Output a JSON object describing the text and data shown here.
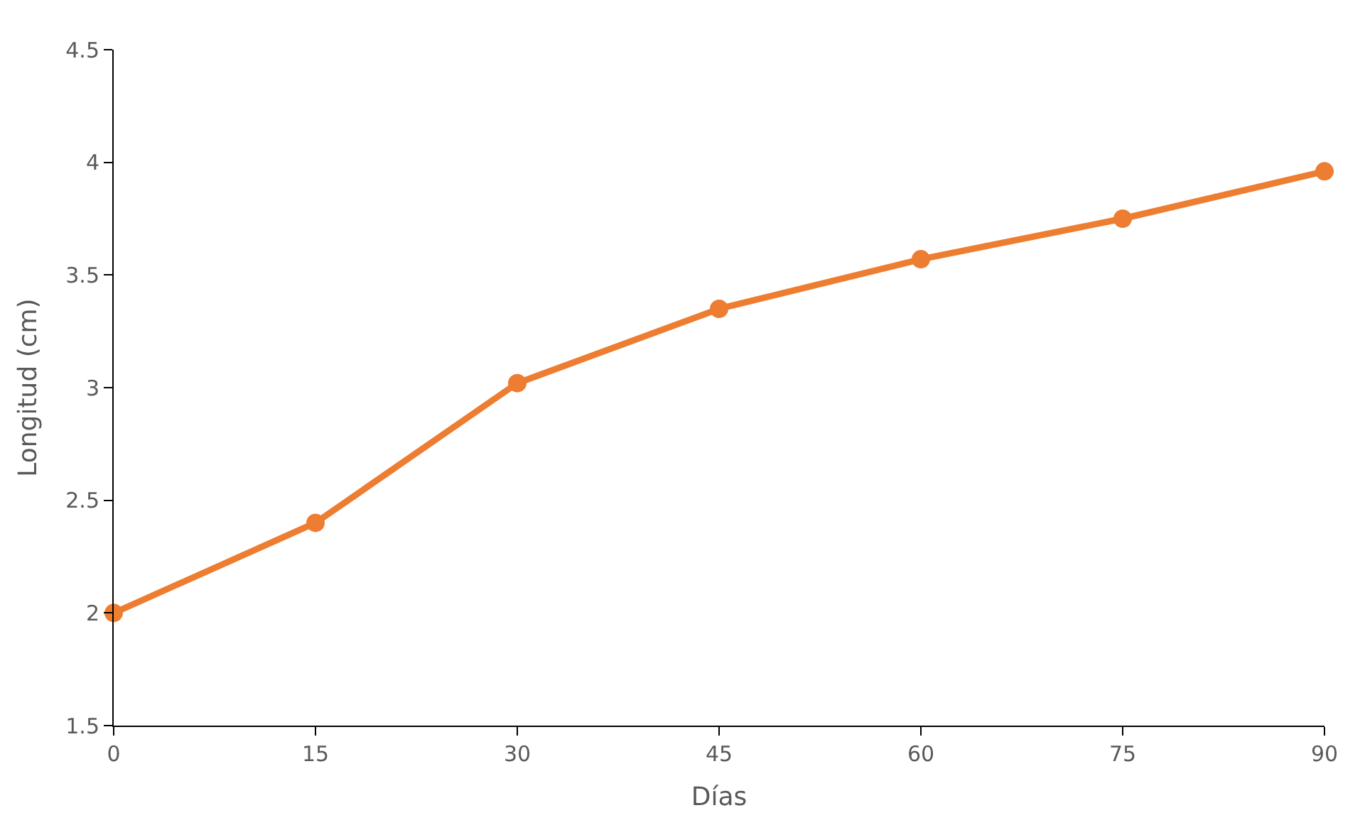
{
  "chart_data": {
    "type": "line",
    "xlabel": "Días",
    "ylabel": "Longitud (cm)",
    "x": [
      0,
      15,
      30,
      45,
      60,
      75,
      90
    ],
    "series": [
      {
        "color": "#ed7d31",
        "values": [
          2.0,
          2.4,
          3.02,
          3.35,
          3.57,
          3.75,
          3.96
        ]
      }
    ],
    "xlim": [
      0,
      90
    ],
    "xticks": [
      0,
      15,
      30,
      45,
      60,
      75,
      90
    ],
    "ylim": [
      1.5,
      4.5
    ],
    "yticks": [
      1.5,
      2,
      2.5,
      3,
      3.5,
      4,
      4.5
    ],
    "marker": "circle",
    "line_style": "solid"
  }
}
